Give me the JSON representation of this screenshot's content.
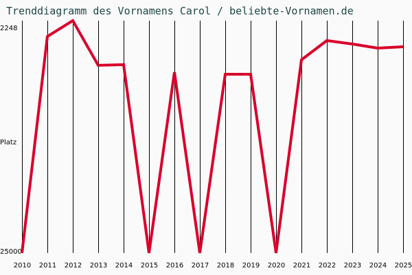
{
  "title": "Trenddiagramm des Vornamens Carol / beliebte-Vornamen.de",
  "y_axis": {
    "top_label": "2248",
    "mid_label": "Platz",
    "bottom_label": "25000"
  },
  "colors": {
    "line": "#d9002a",
    "title": "#1e4646",
    "grid": "#000000",
    "background": "#fafafa"
  },
  "chart_data": {
    "type": "line",
    "title": "Trenddiagramm des Vornamens Carol / beliebte-Vornamen.de",
    "xlabel": "",
    "ylabel": "Platz",
    "ylim": [
      25000,
      2248
    ],
    "y_inverted": true,
    "grid": "vertical",
    "categories": [
      "2010",
      "2011",
      "2012",
      "2013",
      "2014",
      "2015",
      "2016",
      "2017",
      "2018",
      "2019",
      "2020",
      "2021",
      "2022",
      "2023",
      "2024",
      "2025"
    ],
    "series": [
      {
        "name": "Carol",
        "values": [
          25000,
          3796,
          2248,
          6623,
          6556,
          25000,
          7297,
          25000,
          7499,
          7499,
          25000,
          6085,
          4200,
          4537,
          4941,
          4806
        ]
      }
    ]
  }
}
